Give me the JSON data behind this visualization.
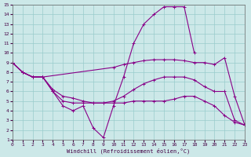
{
  "xlabel": "Windchill (Refroidissement éolien,°C)",
  "bg_color": "#cce8e8",
  "grid_color": "#99cccc",
  "line_color": "#880088",
  "xlim": [
    0,
    23
  ],
  "ylim": [
    1,
    15
  ],
  "xticks": [
    0,
    1,
    2,
    3,
    4,
    5,
    6,
    7,
    8,
    9,
    10,
    11,
    12,
    13,
    14,
    15,
    16,
    17,
    18,
    19,
    20,
    21,
    22,
    23
  ],
  "yticks": [
    1,
    2,
    3,
    4,
    5,
    6,
    7,
    8,
    9,
    10,
    11,
    12,
    13,
    14,
    15
  ],
  "curve1_x": [
    0,
    1,
    2,
    3,
    4,
    5,
    6,
    7,
    8,
    9,
    10,
    11,
    12,
    13,
    14,
    15,
    16,
    17,
    18
  ],
  "curve1_y": [
    9.0,
    8.0,
    7.5,
    7.5,
    6.0,
    4.5,
    4.0,
    4.5,
    2.2,
    1.2,
    4.5,
    7.5,
    11.0,
    13.0,
    14.0,
    14.8,
    14.8,
    14.8,
    10.0
  ],
  "curve2_x": [
    0,
    1,
    2,
    3,
    10,
    11,
    12,
    13,
    14,
    15,
    16,
    17,
    18,
    19,
    20,
    21,
    22,
    23
  ],
  "curve2_y": [
    9.0,
    8.0,
    7.5,
    7.5,
    8.5,
    8.8,
    9.0,
    9.2,
    9.3,
    9.3,
    9.3,
    9.2,
    9.0,
    9.0,
    8.8,
    9.5,
    5.5,
    2.5
  ],
  "curve3_x": [
    0,
    1,
    2,
    3,
    4,
    5,
    6,
    7,
    8,
    9,
    10,
    11,
    12,
    13,
    14,
    15,
    16,
    17,
    18,
    19,
    20,
    21,
    22,
    23
  ],
  "curve3_y": [
    9.0,
    8.0,
    7.5,
    7.5,
    6.0,
    5.0,
    4.8,
    4.8,
    4.8,
    4.8,
    5.0,
    5.5,
    6.2,
    6.8,
    7.2,
    7.5,
    7.5,
    7.5,
    7.2,
    6.5,
    6.0,
    6.0,
    3.0,
    2.5
  ],
  "curve4_x": [
    0,
    1,
    2,
    3,
    4,
    5,
    6,
    7,
    8,
    9,
    10,
    11,
    12,
    13,
    14,
    15,
    16,
    17,
    18,
    19,
    20,
    21,
    22,
    23
  ],
  "curve4_y": [
    9.0,
    8.0,
    7.5,
    7.5,
    6.2,
    5.5,
    5.3,
    5.0,
    4.8,
    4.8,
    4.8,
    4.8,
    5.0,
    5.0,
    5.0,
    5.0,
    5.2,
    5.5,
    5.5,
    5.0,
    4.5,
    3.5,
    2.8,
    2.5
  ]
}
